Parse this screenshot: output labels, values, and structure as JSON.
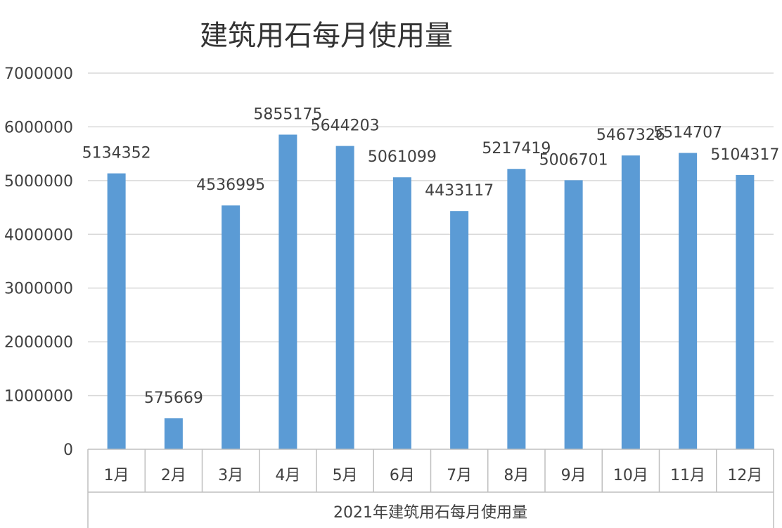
{
  "chart_data": {
    "type": "bar",
    "title": "建筑用石每月使用量",
    "xlabel": "2021年建筑用石每月使用量",
    "ylabel": "",
    "categories": [
      "1月",
      "2月",
      "3月",
      "4月",
      "5月",
      "6月",
      "7月",
      "8月",
      "9月",
      "10月",
      "11月",
      "12月"
    ],
    "values": [
      5134352,
      575669,
      4536995,
      5855175,
      5644203,
      5061099,
      4433117,
      5217419,
      5006701,
      5467326,
      5514707,
      5104317
    ],
    "data_labels": [
      "5134352",
      "575669",
      "4536995",
      "5855175",
      "5644203",
      "5061099",
      "4433117",
      "5217419",
      "5006701",
      "5467326",
      "5514707",
      "5104317"
    ],
    "ylim": [
      0,
      7000000
    ],
    "yticks": [
      0,
      1000000,
      2000000,
      3000000,
      4000000,
      5000000,
      6000000,
      7000000
    ],
    "ytick_labels": [
      "0",
      "1000000",
      "2000000",
      "3000000",
      "4000000",
      "5000000",
      "6000000",
      "7000000"
    ],
    "grid": true,
    "legend": "none",
    "bar_color": "#5b9bd5"
  }
}
